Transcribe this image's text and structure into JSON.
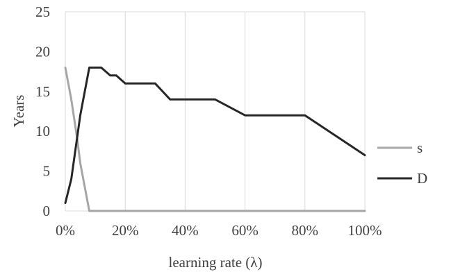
{
  "chart_data": {
    "type": "line",
    "xlabel": "learning rate (λ)",
    "ylabel": "Years",
    "xlim": [
      0,
      1
    ],
    "ylim": [
      0,
      25
    ],
    "x_ticks": [
      0,
      0.2,
      0.4,
      0.6,
      0.8,
      1.0
    ],
    "x_tick_labels": [
      "0%",
      "20%",
      "40%",
      "60%",
      "80%",
      "100%"
    ],
    "y_ticks": [
      0,
      5,
      10,
      15,
      20,
      25
    ],
    "y_tick_labels": [
      "0",
      "5",
      "10",
      "15",
      "20",
      "25"
    ],
    "grid": "vertical",
    "legend_position": "right",
    "series": [
      {
        "name": "s",
        "color": "#a6a6a6",
        "points": [
          [
            0,
            18
          ],
          [
            0.02,
            14
          ],
          [
            0.04,
            9
          ],
          [
            0.05,
            6
          ],
          [
            0.08,
            0
          ],
          [
            1.0,
            0
          ]
        ]
      },
      {
        "name": "D",
        "color": "#262626",
        "points": [
          [
            0,
            1
          ],
          [
            0.02,
            4
          ],
          [
            0.05,
            12
          ],
          [
            0.08,
            18
          ],
          [
            0.12,
            18
          ],
          [
            0.15,
            17
          ],
          [
            0.17,
            17
          ],
          [
            0.2,
            16
          ],
          [
            0.3,
            16
          ],
          [
            0.35,
            14
          ],
          [
            0.5,
            14
          ],
          [
            0.6,
            12
          ],
          [
            0.8,
            12
          ],
          [
            1.0,
            7
          ]
        ]
      }
    ]
  }
}
